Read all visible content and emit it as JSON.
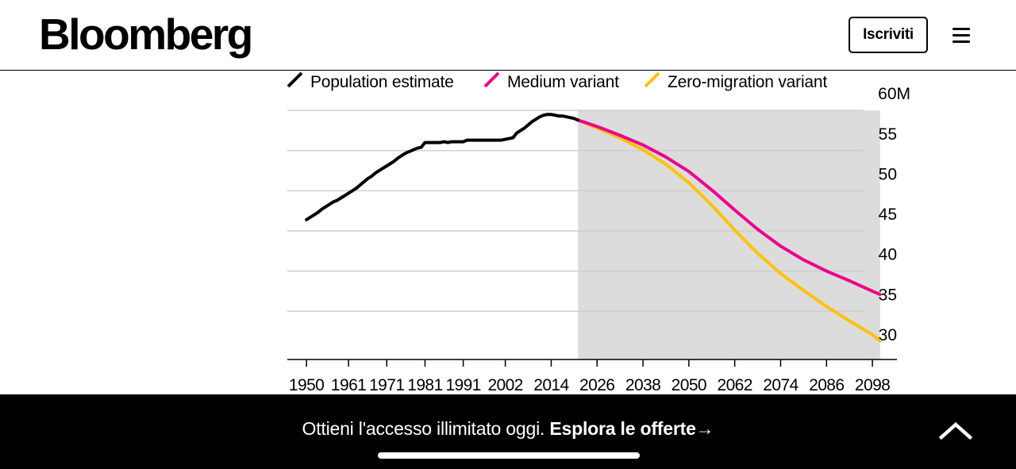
{
  "header": {
    "logo": "Bloomberg",
    "subscribe_label": "Iscriviti",
    "menu_icon": "hamburger-menu-icon"
  },
  "chart_data": {
    "type": "line",
    "title": "",
    "xlabel": "",
    "ylabel": "",
    "legend": [
      {
        "label": "Population estimate",
        "color": "#000000"
      },
      {
        "label": "Medium variant",
        "color": "#ec008c"
      },
      {
        "label": "Zero-migration variant",
        "color": "#ffc107"
      }
    ],
    "legend_placement": "top-left",
    "xlim": [
      1945,
      2104
    ],
    "ylim": [
      29,
      61
    ],
    "y_axis_side": "right",
    "x_ticks": [
      1950,
      1961,
      1971,
      1981,
      1991,
      2002,
      2014,
      2026,
      2038,
      2050,
      2062,
      2074,
      2086,
      2098
    ],
    "x_tick_labels": [
      "1950",
      "1961",
      "1971",
      "1981",
      "1991",
      "2002",
      "2014",
      "2026",
      "2038",
      "2050",
      "2062",
      "2074",
      "2086",
      "2098"
    ],
    "y_ticks": [
      60,
      55,
      50,
      45,
      40,
      35,
      30
    ],
    "y_tick_labels": [
      "60M",
      "55",
      "50",
      "45",
      "40",
      "35",
      "30"
    ],
    "grid": true,
    "projection_shading": {
      "from": 2021,
      "to": 2100,
      "color": "#dcdcdc"
    },
    "series": [
      {
        "name": "Population estimate",
        "color": "#000000",
        "x": [
          1950,
          1951,
          1952,
          1953,
          1954,
          1955,
          1956,
          1957,
          1958,
          1959,
          1960,
          1961,
          1962,
          1963,
          1964,
          1965,
          1966,
          1967,
          1968,
          1969,
          1970,
          1971,
          1972,
          1973,
          1974,
          1975,
          1976,
          1977,
          1978,
          1979,
          1980,
          1981,
          1982,
          1983,
          1984,
          1985,
          1986,
          1987,
          1988,
          1989,
          1990,
          1991,
          1992,
          1993,
          1994,
          1995,
          1996,
          1997,
          1998,
          1999,
          2000,
          2001,
          2002,
          2003,
          2004,
          2005,
          2006,
          2007,
          2008,
          2009,
          2010,
          2011,
          2012,
          2013,
          2014,
          2015,
          2016,
          2017,
          2018,
          2019,
          2020,
          2021
        ],
        "values": [
          46.4,
          46.7,
          47.0,
          47.3,
          47.7,
          48.0,
          48.3,
          48.6,
          48.8,
          49.1,
          49.4,
          49.7,
          50.0,
          50.3,
          50.7,
          51.1,
          51.5,
          51.8,
          52.2,
          52.5,
          52.8,
          53.1,
          53.4,
          53.7,
          54.1,
          54.4,
          54.7,
          54.9,
          55.1,
          55.3,
          55.4,
          56.0,
          56.0,
          56.0,
          56.0,
          56.0,
          56.1,
          56.0,
          56.1,
          56.1,
          56.1,
          56.1,
          56.3,
          56.3,
          56.3,
          56.3,
          56.3,
          56.3,
          56.3,
          56.3,
          56.3,
          56.3,
          56.4,
          56.5,
          56.6,
          57.2,
          57.5,
          57.8,
          58.2,
          58.6,
          58.9,
          59.2,
          59.4,
          59.5,
          59.5,
          59.4,
          59.3,
          59.3,
          59.2,
          59.1,
          59.0,
          58.8
        ]
      },
      {
        "name": "Medium variant",
        "color": "#ec008c",
        "x": [
          2021,
          2026,
          2032,
          2038,
          2044,
          2050,
          2056,
          2062,
          2068,
          2074,
          2080,
          2086,
          2092,
          2098,
          2100
        ],
        "values": [
          58.8,
          58.0,
          56.9,
          55.7,
          54.2,
          52.4,
          50.1,
          47.6,
          45.2,
          43.1,
          41.4,
          40.0,
          38.8,
          37.5,
          37.1
        ]
      },
      {
        "name": "Zero-migration variant",
        "color": "#ffc107",
        "x": [
          2021,
          2026,
          2032,
          2038,
          2044,
          2050,
          2056,
          2062,
          2068,
          2074,
          2080,
          2086,
          2092,
          2098,
          2100
        ],
        "values": [
          58.8,
          57.8,
          56.6,
          55.1,
          53.3,
          51.0,
          48.2,
          45.1,
          42.2,
          39.7,
          37.6,
          35.6,
          33.8,
          32.1,
          31.3
        ]
      }
    ]
  },
  "footer": {
    "promo_text": "Ottieni l'accesso illimitato oggi. ",
    "promo_cta": "Esplora le offerte",
    "promo_arrow": "→",
    "collapse_icon": "chevron-up-icon"
  }
}
